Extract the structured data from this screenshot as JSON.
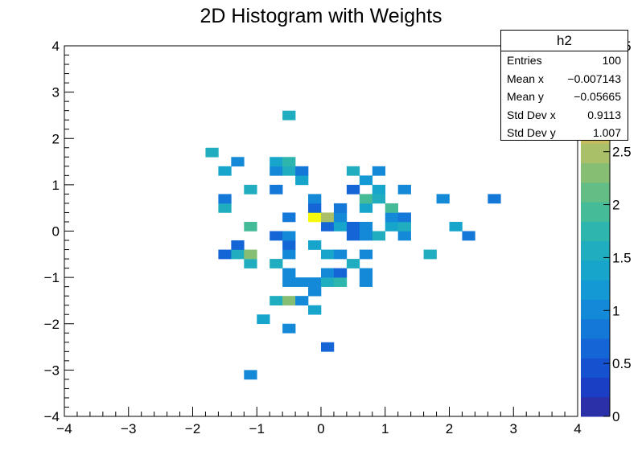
{
  "chart_data": {
    "type": "heatmap",
    "title": "2D Histogram with Weights",
    "xlim": [
      -4,
      4
    ],
    "ylim": [
      -4,
      4
    ],
    "x_bin_width": 0.2,
    "y_bin_width": 0.2,
    "xticks": [
      "−4",
      "−3",
      "−2",
      "−1",
      "0",
      "1",
      "2",
      "3",
      "4"
    ],
    "yticks": [
      "−4",
      "−3",
      "−2",
      "−1",
      "0",
      "1",
      "2",
      "3",
      "4"
    ],
    "z_range": [
      0,
      3.5
    ],
    "zticks": [
      "0",
      "0.5",
      "1",
      "1.5",
      "2",
      "2.5",
      "3",
      "3.5"
    ],
    "palette": [
      "#2b2fa8",
      "#1b3fc4",
      "#1552cf",
      "#1466d6",
      "#1478d9",
      "#1489d7",
      "#1599d4",
      "#17a5cc",
      "#20adc0",
      "#2eb5ad",
      "#46bb98",
      "#62be84",
      "#86bf74",
      "#a9bf68",
      "#c8bd5e",
      "#dcbc54",
      "#efc63e",
      "#f6e41e",
      "#f8fa0d"
    ],
    "bins": [
      {
        "x": -3.6,
        "y": -3.6,
        "w": 0
      },
      {
        "x": -1.1,
        "y": -3.1,
        "w": 1.0
      },
      {
        "x": 0.1,
        "y": -2.5,
        "w": 0.7
      },
      {
        "x": -0.5,
        "y": -2.1,
        "w": 1.1
      },
      {
        "x": -0.9,
        "y": -1.9,
        "w": 1.3
      },
      {
        "x": -0.1,
        "y": -1.7,
        "w": 1.3
      },
      {
        "x": -0.7,
        "y": -1.5,
        "w": 1.5
      },
      {
        "x": -0.5,
        "y": -1.5,
        "w": 2.3
      },
      {
        "x": -0.3,
        "y": -1.5,
        "w": 1.0
      },
      {
        "x": -0.1,
        "y": -1.3,
        "w": 1.0
      },
      {
        "x": -0.5,
        "y": -1.1,
        "w": 1.1
      },
      {
        "x": -0.3,
        "y": -1.1,
        "w": 1.1
      },
      {
        "x": -0.1,
        "y": -1.1,
        "w": 1.1
      },
      {
        "x": 0.1,
        "y": -1.1,
        "w": 1.5
      },
      {
        "x": 0.3,
        "y": -1.1,
        "w": 1.8
      },
      {
        "x": 0.7,
        "y": -1.1,
        "w": 1.1
      },
      {
        "x": -0.5,
        "y": -0.9,
        "w": 1.0
      },
      {
        "x": 0.1,
        "y": -0.9,
        "w": 1.1
      },
      {
        "x": 0.3,
        "y": -0.9,
        "w": 0.7
      },
      {
        "x": 0.7,
        "y": -0.9,
        "w": 1.1
      },
      {
        "x": -1.1,
        "y": -0.7,
        "w": 1.5
      },
      {
        "x": -0.7,
        "y": -0.7,
        "w": 1.5
      },
      {
        "x": 0.5,
        "y": -0.7,
        "w": 1.5
      },
      {
        "x": -1.5,
        "y": -0.5,
        "w": 0.7
      },
      {
        "x": -1.3,
        "y": -0.5,
        "w": 1.6
      },
      {
        "x": -1.1,
        "y": -0.5,
        "w": 2.3
      },
      {
        "x": -0.5,
        "y": -0.5,
        "w": 1.1
      },
      {
        "x": 0.1,
        "y": -0.5,
        "w": 1.3
      },
      {
        "x": 0.3,
        "y": -0.5,
        "w": 1.1
      },
      {
        "x": 0.7,
        "y": -0.5,
        "w": 1.0
      },
      {
        "x": 1.7,
        "y": -0.5,
        "w": 1.5
      },
      {
        "x": -1.3,
        "y": -0.3,
        "w": 0.7
      },
      {
        "x": -0.5,
        "y": -0.3,
        "w": 0.7
      },
      {
        "x": -0.1,
        "y": -0.3,
        "w": 1.3
      },
      {
        "x": -0.7,
        "y": -0.1,
        "w": 0.6
      },
      {
        "x": -0.5,
        "y": -0.1,
        "w": 1.1
      },
      {
        "x": 0.5,
        "y": -0.1,
        "w": 0.7
      },
      {
        "x": 0.7,
        "y": -0.1,
        "w": 1.0
      },
      {
        "x": 0.9,
        "y": -0.1,
        "w": 1.5
      },
      {
        "x": 1.3,
        "y": -0.1,
        "w": 1.0
      },
      {
        "x": 2.3,
        "y": -0.1,
        "w": 0.9
      },
      {
        "x": -1.1,
        "y": 0.1,
        "w": 2.0
      },
      {
        "x": 0.1,
        "y": 0.1,
        "w": 0.7
      },
      {
        "x": 0.3,
        "y": 0.1,
        "w": 1.4
      },
      {
        "x": 0.5,
        "y": 0.1,
        "w": 0.6
      },
      {
        "x": 0.7,
        "y": 0.1,
        "w": 1.1
      },
      {
        "x": 1.1,
        "y": 0.1,
        "w": 1.3
      },
      {
        "x": 1.3,
        "y": 0.1,
        "w": 1.6
      },
      {
        "x": 2.1,
        "y": 0.1,
        "w": 1.4
      },
      {
        "x": -0.5,
        "y": 0.3,
        "w": 0.9
      },
      {
        "x": -0.1,
        "y": 0.3,
        "w": 3.5
      },
      {
        "x": 0.1,
        "y": 0.3,
        "w": 2.4
      },
      {
        "x": 0.3,
        "y": 0.3,
        "w": 1.0
      },
      {
        "x": 1.1,
        "y": 0.3,
        "w": 1.0
      },
      {
        "x": 1.3,
        "y": 0.3,
        "w": 0.8
      },
      {
        "x": -1.5,
        "y": 0.5,
        "w": 1.5
      },
      {
        "x": -0.1,
        "y": 0.5,
        "w": 0.7
      },
      {
        "x": 0.3,
        "y": 0.5,
        "w": 0.8
      },
      {
        "x": 0.7,
        "y": 0.5,
        "w": 1.3
      },
      {
        "x": 1.1,
        "y": 0.5,
        "w": 1.9
      },
      {
        "x": -1.5,
        "y": 0.7,
        "w": 0.9
      },
      {
        "x": -0.1,
        "y": 0.7,
        "w": 1.0
      },
      {
        "x": 0.7,
        "y": 0.7,
        "w": 1.9
      },
      {
        "x": 0.9,
        "y": 0.7,
        "w": 1.6
      },
      {
        "x": 1.9,
        "y": 0.7,
        "w": 1.0
      },
      {
        "x": 2.7,
        "y": 0.7,
        "w": 0.9
      },
      {
        "x": -1.1,
        "y": 0.9,
        "w": 1.5
      },
      {
        "x": -0.7,
        "y": 0.9,
        "w": 0.8
      },
      {
        "x": 0.5,
        "y": 0.9,
        "w": 0.6
      },
      {
        "x": 0.9,
        "y": 0.9,
        "w": 1.4
      },
      {
        "x": 1.3,
        "y": 0.9,
        "w": 1.0
      },
      {
        "x": -0.3,
        "y": 1.1,
        "w": 1.4
      },
      {
        "x": 0.7,
        "y": 1.1,
        "w": 1.2
      },
      {
        "x": -1.5,
        "y": 1.3,
        "w": 1.3
      },
      {
        "x": -0.7,
        "y": 1.3,
        "w": 1.1
      },
      {
        "x": -0.5,
        "y": 1.3,
        "w": 1.5
      },
      {
        "x": -0.3,
        "y": 1.3,
        "w": 0.8
      },
      {
        "x": 0.5,
        "y": 1.3,
        "w": 1.5
      },
      {
        "x": 0.9,
        "y": 1.3,
        "w": 1.0
      },
      {
        "x": -1.3,
        "y": 1.5,
        "w": 1.1
      },
      {
        "x": -0.7,
        "y": 1.5,
        "w": 1.3
      },
      {
        "x": -0.5,
        "y": 1.5,
        "w": 1.8
      },
      {
        "x": -1.7,
        "y": 1.7,
        "w": 1.5
      },
      {
        "x": -0.5,
        "y": 2.5,
        "w": 1.6
      }
    ]
  },
  "stats": {
    "name": "h2",
    "rows": [
      {
        "label": "Entries",
        "value": "100"
      },
      {
        "label": "Mean x",
        "value": "−0.007143"
      },
      {
        "label": "Mean y",
        "value": "−0.05665"
      },
      {
        "label": "Std Dev x",
        "value": "0.9113"
      },
      {
        "label": "Std Dev y",
        "value": "1.007"
      }
    ]
  }
}
